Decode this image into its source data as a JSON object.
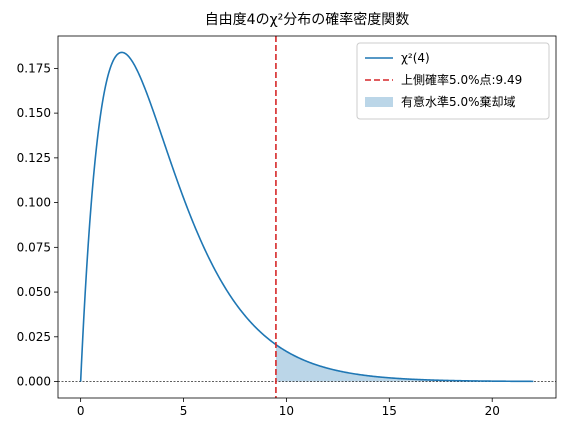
{
  "chart_data": {
    "type": "line",
    "title": "自由度4のχ²分布の確率密度関数",
    "xlabel": "",
    "ylabel": "",
    "xlim": [
      -1.1,
      23.1
    ],
    "ylim": [
      -0.0092,
      0.1931
    ],
    "x_ticks": [
      "0",
      "5",
      "10",
      "15",
      "20"
    ],
    "x_tick_values": [
      0,
      5,
      10,
      15,
      20
    ],
    "y_ticks": [
      "0.000",
      "0.025",
      "0.050",
      "0.075",
      "0.100",
      "0.125",
      "0.150",
      "0.175"
    ],
    "y_tick_values": [
      0,
      0.025,
      0.05,
      0.075,
      0.1,
      0.125,
      0.15,
      0.175
    ],
    "grid": false,
    "legend_position": "top-right",
    "series": [
      {
        "name": "χ²(4)",
        "color": "#1f77b4",
        "x_range": [
          0,
          22
        ],
        "points": [
          [
            0,
            0
          ],
          [
            1,
            0.1516
          ],
          [
            2,
            0.1839
          ],
          [
            3,
            0.1673
          ],
          [
            4,
            0.1353
          ],
          [
            5,
            0.1026
          ],
          [
            6,
            0.0747
          ],
          [
            8,
            0.0366
          ],
          [
            9.49,
            0.0206
          ],
          [
            12,
            0.0074
          ],
          [
            15,
            0.0021
          ],
          [
            20,
            0.0002
          ],
          [
            22,
            0.0001
          ]
        ],
        "function": "x/4 * exp(-x/2)"
      }
    ],
    "critical_line": {
      "label": "上側確率5.0%点:9.49",
      "x": 9.49,
      "color": "#d62728",
      "style": "dashed"
    },
    "rejection_region": {
      "label": "有意水準5.0%棄却域",
      "x_from": 9.49,
      "x_to": 22,
      "color": "#1f77b4",
      "opacity": 0.3
    },
    "baseline": {
      "y": 0,
      "style": "dashed",
      "color": "#000000"
    }
  }
}
